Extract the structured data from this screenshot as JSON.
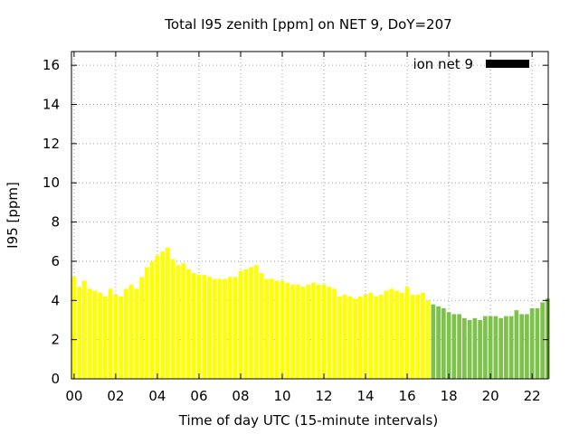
{
  "chart_data": {
    "type": "bar",
    "title": "Total I95 zenith [ppm] on NET 9, DoY=207",
    "xlabel": "Time of day UTC (15-minute intervals)",
    "ylabel": "I95 [ppm]",
    "xlim": [
      0,
      22.75
    ],
    "ylim": [
      0,
      16.7
    ],
    "grid": true,
    "legend_position": "top-right",
    "x_ticks": [
      0,
      2,
      4,
      6,
      8,
      10,
      12,
      14,
      16,
      18,
      20,
      22
    ],
    "x_tick_labels": [
      "00",
      "02",
      "04",
      "06",
      "08",
      "10",
      "12",
      "14",
      "16",
      "18",
      "20",
      "22"
    ],
    "y_ticks": [
      0,
      2,
      4,
      6,
      8,
      10,
      12,
      14,
      16
    ],
    "y_tick_labels": [
      "0",
      "2",
      "4",
      "6",
      "8",
      "10",
      "12",
      "14",
      "16"
    ],
    "bar_interval_hours": 0.25,
    "series": [
      {
        "name": "ion net 9",
        "legend_color": "#000000",
        "x": [
          0,
          0.25,
          0.5,
          0.75,
          1,
          1.25,
          1.5,
          1.75,
          2,
          2.25,
          2.5,
          2.75,
          3,
          3.25,
          3.5,
          3.75,
          4,
          4.25,
          4.5,
          4.75,
          5,
          5.25,
          5.5,
          5.75,
          6,
          6.25,
          6.5,
          6.75,
          7,
          7.25,
          7.5,
          7.75,
          8,
          8.25,
          8.5,
          8.75,
          9,
          9.25,
          9.5,
          9.75,
          10,
          10.25,
          10.5,
          10.75,
          11,
          11.25,
          11.5,
          11.75,
          12,
          12.25,
          12.5,
          12.75,
          13,
          13.25,
          13.5,
          13.75,
          14,
          14.25,
          14.5,
          14.75,
          15,
          15.25,
          15.5,
          15.75,
          16,
          16.25,
          16.5,
          16.75,
          17,
          17.25,
          17.5,
          17.75,
          18,
          18.25,
          18.5,
          18.75,
          19,
          19.25,
          19.5,
          19.75,
          20,
          20.25,
          20.5,
          20.75,
          21,
          21.25,
          21.5,
          21.75,
          22,
          22.25,
          22.5,
          22.75
        ],
        "values": [
          5.2,
          4.7,
          5.0,
          4.6,
          4.5,
          4.4,
          4.2,
          4.6,
          4.3,
          4.2,
          4.6,
          4.8,
          4.6,
          5.2,
          5.7,
          6.0,
          6.3,
          6.5,
          6.7,
          6.1,
          5.8,
          5.9,
          5.6,
          5.4,
          5.3,
          5.3,
          5.2,
          5.1,
          5.1,
          5.1,
          5.2,
          5.2,
          5.5,
          5.6,
          5.7,
          5.8,
          5.4,
          5.1,
          5.1,
          5.0,
          5.0,
          4.9,
          4.8,
          4.8,
          4.7,
          4.8,
          4.9,
          4.8,
          4.8,
          4.7,
          4.6,
          4.2,
          4.3,
          4.2,
          4.1,
          4.2,
          4.3,
          4.4,
          4.2,
          4.3,
          4.5,
          4.6,
          4.5,
          4.4,
          4.7,
          4.3,
          4.3,
          4.4,
          4.0,
          3.8,
          3.7,
          3.6,
          3.4,
          3.3,
          3.3,
          3.1,
          3.0,
          3.1,
          3.0,
          3.2,
          3.2,
          3.2,
          3.1,
          3.2,
          3.2,
          3.5,
          3.3,
          3.3,
          3.6,
          3.6,
          3.9,
          4.1
        ],
        "colors": {
          "yellow": "#ffff00",
          "green": "#7dc24b"
        },
        "green_from_x": 17.25
      }
    ]
  }
}
